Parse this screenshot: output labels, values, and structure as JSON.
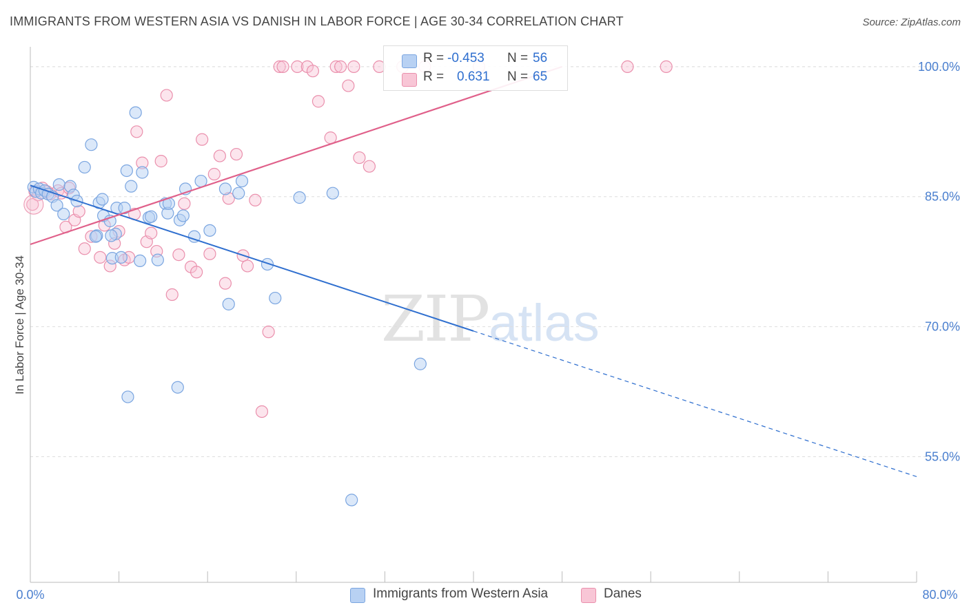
{
  "title": "IMMIGRANTS FROM WESTERN ASIA VS DANISH IN LABOR FORCE | AGE 30-34 CORRELATION CHART",
  "source": "Source: ZipAtlas.com",
  "watermark": {
    "zip": "ZIP",
    "atlas": "atlas"
  },
  "legend": {
    "series": [
      {
        "r_label": "R =",
        "r_value": "-0.453",
        "n_label": "N =",
        "n_value": "56"
      },
      {
        "r_label": "R =",
        "r_value": "0.631",
        "n_label": "N =",
        "n_value": "65"
      }
    ]
  },
  "bottom_legend": [
    "Immigrants from Western Asia",
    "Danes"
  ],
  "chart_data": {
    "type": "scatter",
    "title": "IMMIGRANTS FROM WESTERN ASIA VS DANISH IN LABOR FORCE | AGE 30-34 CORRELATION CHART",
    "xlabel": "",
    "ylabel": "In Labor Force | Age 30-34",
    "xlim": [
      0,
      80
    ],
    "ylim": [
      40.5,
      101.5
    ],
    "x_tick_labels": [
      "0.0%",
      "80.0%"
    ],
    "y_ticks": [
      55,
      70,
      85,
      100
    ],
    "y_tick_labels": [
      "55.0%",
      "70.0%",
      "85.0%",
      "100.0%"
    ],
    "grid": true,
    "legend_position": "top-center",
    "colors": {
      "blue_fill": "#b8d1f3",
      "blue_stroke": "#7aa5e0",
      "blue_line": "#2f6fcf",
      "pink_fill": "#f8c6d6",
      "pink_stroke": "#ea8fac",
      "pink_line": "#e0608a"
    },
    "series": [
      {
        "name": "Immigrants from Western Asia",
        "color": "#7aa5e0",
        "points": [
          [
            0.3,
            86.1
          ],
          [
            0.5,
            85.6
          ],
          [
            0.8,
            85.9
          ],
          [
            1.0,
            85.4
          ],
          [
            1.3,
            85.7
          ],
          [
            1.6,
            85.3
          ],
          [
            2.0,
            85.0
          ],
          [
            2.4,
            84.0
          ],
          [
            2.6,
            86.4
          ],
          [
            3.0,
            83.0
          ],
          [
            3.6,
            86.2
          ],
          [
            3.9,
            85.2
          ],
          [
            4.2,
            84.5
          ],
          [
            4.9,
            88.4
          ],
          [
            5.5,
            91.0
          ],
          [
            6.2,
            84.3
          ],
          [
            6.5,
            84.7
          ],
          [
            6.6,
            82.8
          ],
          [
            6.0,
            80.5
          ],
          [
            7.2,
            82.2
          ],
          [
            7.4,
            77.9
          ],
          [
            7.7,
            80.7
          ],
          [
            7.8,
            83.7
          ],
          [
            8.2,
            78.0
          ],
          [
            8.5,
            83.7
          ],
          [
            8.7,
            88.0
          ],
          [
            9.1,
            86.2
          ],
          [
            9.5,
            94.7
          ],
          [
            9.9,
            77.6
          ],
          [
            10.1,
            87.8
          ],
          [
            10.7,
            82.6
          ],
          [
            10.9,
            82.7
          ],
          [
            11.5,
            77.7
          ],
          [
            12.2,
            84.2
          ],
          [
            12.4,
            83.1
          ],
          [
            12.5,
            84.2
          ],
          [
            13.5,
            82.3
          ],
          [
            13.8,
            82.8
          ],
          [
            13.3,
            63.0
          ],
          [
            14.0,
            85.9
          ],
          [
            14.8,
            80.4
          ],
          [
            15.4,
            86.8
          ],
          [
            16.2,
            81.1
          ],
          [
            17.6,
            85.9
          ],
          [
            17.9,
            72.6
          ],
          [
            18.8,
            85.4
          ],
          [
            19.1,
            86.8
          ],
          [
            21.4,
            77.2
          ],
          [
            22.1,
            73.3
          ],
          [
            24.3,
            84.9
          ],
          [
            27.3,
            85.4
          ],
          [
            29.0,
            50.0
          ],
          [
            35.2,
            65.7
          ],
          [
            8.8,
            61.9
          ],
          [
            7.3,
            80.5
          ],
          [
            5.9,
            80.4
          ]
        ]
      },
      {
        "name": "Danes",
        "color": "#ea8fac",
        "points": [
          [
            0.2,
            84.1
          ],
          [
            0.4,
            85.6
          ],
          [
            0.7,
            85.2
          ],
          [
            1.1,
            86.0
          ],
          [
            1.5,
            85.6
          ],
          [
            1.8,
            85.3
          ],
          [
            2.5,
            85.7
          ],
          [
            2.8,
            85.4
          ],
          [
            3.2,
            81.5
          ],
          [
            3.5,
            86.0
          ],
          [
            4.0,
            82.3
          ],
          [
            4.4,
            83.3
          ],
          [
            4.9,
            79.0
          ],
          [
            5.5,
            80.4
          ],
          [
            6.3,
            78.0
          ],
          [
            6.7,
            81.7
          ],
          [
            7.2,
            77.0
          ],
          [
            7.6,
            79.6
          ],
          [
            8.0,
            81.0
          ],
          [
            8.5,
            77.7
          ],
          [
            8.9,
            78.0
          ],
          [
            9.4,
            83.0
          ],
          [
            9.6,
            92.5
          ],
          [
            10.1,
            88.9
          ],
          [
            10.5,
            79.8
          ],
          [
            10.9,
            80.8
          ],
          [
            11.4,
            78.7
          ],
          [
            11.8,
            89.1
          ],
          [
            12.3,
            96.7
          ],
          [
            12.8,
            73.7
          ],
          [
            13.4,
            78.3
          ],
          [
            13.9,
            84.2
          ],
          [
            14.5,
            76.9
          ],
          [
            15.0,
            76.3
          ],
          [
            15.5,
            91.6
          ],
          [
            16.2,
            78.4
          ],
          [
            16.6,
            87.6
          ],
          [
            17.1,
            89.7
          ],
          [
            17.6,
            75.0
          ],
          [
            17.9,
            84.8
          ],
          [
            18.6,
            89.9
          ],
          [
            19.2,
            78.2
          ],
          [
            19.6,
            77.0
          ],
          [
            20.3,
            84.6
          ],
          [
            20.9,
            60.2
          ],
          [
            21.5,
            69.4
          ],
          [
            22.5,
            100.0
          ],
          [
            22.8,
            100.0
          ],
          [
            24.1,
            100.0
          ],
          [
            25.0,
            100.0
          ],
          [
            25.5,
            99.5
          ],
          [
            26.0,
            96.0
          ],
          [
            27.1,
            91.8
          ],
          [
            27.6,
            100.0
          ],
          [
            28.0,
            100.0
          ],
          [
            28.7,
            97.8
          ],
          [
            29.2,
            100.0
          ],
          [
            29.7,
            89.5
          ],
          [
            30.6,
            88.5
          ],
          [
            31.5,
            100.0
          ],
          [
            33.6,
            100.0
          ],
          [
            35.6,
            100.0
          ],
          [
            40.5,
            100.0
          ],
          [
            53.9,
            100.0
          ],
          [
            57.4,
            100.0
          ]
        ]
      }
    ],
    "trendlines": [
      {
        "series": "Immigrants from Western Asia",
        "x": [
          0,
          80
        ],
        "y": [
          86.3,
          52.7
        ],
        "solid_until_x": 40
      },
      {
        "series": "Danes",
        "x": [
          0,
          48
        ],
        "y": [
          79.5,
          100.0
        ]
      }
    ]
  }
}
